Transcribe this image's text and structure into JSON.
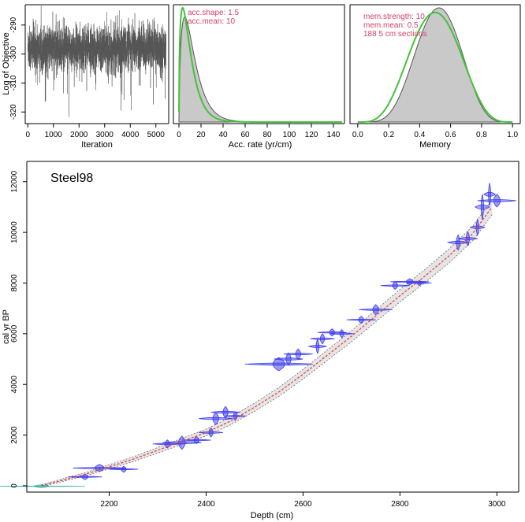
{
  "chart_data": [
    {
      "id": "iterations",
      "type": "line",
      "title": "",
      "xlabel": "Iteration",
      "ylabel": "Log of Objective",
      "xlim": [
        -100,
        5500
      ],
      "ylim": [
        -324,
        -283
      ],
      "xticks": [
        "0",
        "1000",
        "2000",
        "3000",
        "4000",
        "5000"
      ],
      "yticks": [
        "-290",
        "-300",
        "-310",
        "-320"
      ],
      "series": [
        {
          "color": "#555555",
          "n_iterations": 5400,
          "mean": -298,
          "spread": 7
        }
      ]
    },
    {
      "id": "acc-rate",
      "type": "area",
      "xlabel": "Acc. rate (yr/cm)",
      "xlim": [
        -5,
        150
      ],
      "xticks": [
        "0",
        "20",
        "40",
        "60",
        "80",
        "100",
        "120",
        "140"
      ],
      "legend": [
        "acc.shape:  1.5",
        "acc.mean:  10"
      ],
      "series": [
        {
          "role": "posterior",
          "fill": "#c9c9c9",
          "stroke": "#555555",
          "mode": 5,
          "scale": 10
        },
        {
          "role": "prior",
          "stroke": "#44c23a",
          "shape": 1.5,
          "mean": 10
        }
      ]
    },
    {
      "id": "memory",
      "type": "area",
      "xlabel": "Memory",
      "xlim": [
        -0.05,
        1.05
      ],
      "xticks": [
        "0.0",
        "0.2",
        "0.4",
        "0.6",
        "0.8",
        "1.0"
      ],
      "legend": [
        "mem.strength: 10",
        "mem.mean:  0.5",
        "188  5 cm sections"
      ],
      "series": [
        {
          "role": "posterior",
          "fill": "#c9c9c9",
          "stroke": "#555555",
          "mode": 0.52
        },
        {
          "role": "prior",
          "stroke": "#44c23a",
          "strength": 10,
          "mean": 0.5
        }
      ]
    },
    {
      "id": "age-depth",
      "type": "scatter",
      "title": "Steel98",
      "xlabel": "Depth (cm)",
      "ylabel": "cal yr BP",
      "xlim": [
        2030,
        3045
      ],
      "ylim": [
        -250,
        12800
      ],
      "xticks": [
        2200,
        2400,
        2600,
        2800,
        3000
      ],
      "yticks": [
        0,
        2000,
        4000,
        6000,
        8000,
        10000,
        12000
      ],
      "model": {
        "depth": [
          2060,
          2100,
          2150,
          2200,
          2250,
          2300,
          2350,
          2400,
          2450,
          2500,
          2550,
          2600,
          2650,
          2700,
          2750,
          2800,
          2850,
          2900,
          2950,
          2990
        ],
        "age": [
          0,
          200,
          450,
          750,
          1050,
          1400,
          1750,
          2100,
          2550,
          3100,
          3700,
          4400,
          5150,
          5900,
          6700,
          7500,
          8250,
          9050,
          9950,
          11000
        ],
        "line_color": "#e23b3b",
        "band_color": "#888888"
      },
      "dates": [
        {
          "depth": 2060,
          "age": -20,
          "wd": 90,
          "ha": 55,
          "color": "#3fb6a8"
        },
        {
          "depth": 2150,
          "age": 350,
          "wd": 35,
          "ha": 110
        },
        {
          "depth": 2180,
          "age": 700,
          "wd": 55,
          "ha": 140
        },
        {
          "depth": 2230,
          "age": 650,
          "wd": 30,
          "ha": 120
        },
        {
          "depth": 2320,
          "age": 1650,
          "wd": 30,
          "ha": 160
        },
        {
          "depth": 2350,
          "age": 1700,
          "wd": 40,
          "ha": 260
        },
        {
          "depth": 2380,
          "age": 1800,
          "wd": 30,
          "ha": 140
        },
        {
          "depth": 2410,
          "age": 2100,
          "wd": 25,
          "ha": 180
        },
        {
          "depth": 2420,
          "age": 2650,
          "wd": 35,
          "ha": 240
        },
        {
          "depth": 2440,
          "age": 2900,
          "wd": 30,
          "ha": 230
        },
        {
          "depth": 2460,
          "age": 2750,
          "wd": 22,
          "ha": 170
        },
        {
          "depth": 2550,
          "age": 4800,
          "wd": 70,
          "ha": 260
        },
        {
          "depth": 2570,
          "age": 5000,
          "wd": 30,
          "ha": 240
        },
        {
          "depth": 2590,
          "age": 5200,
          "wd": 30,
          "ha": 200
        },
        {
          "depth": 2630,
          "age": 5500,
          "wd": 18,
          "ha": 280
        },
        {
          "depth": 2640,
          "age": 5800,
          "wd": 25,
          "ha": 200
        },
        {
          "depth": 2660,
          "age": 6050,
          "wd": 30,
          "ha": 140
        },
        {
          "depth": 2680,
          "age": 6000,
          "wd": 25,
          "ha": 160
        },
        {
          "depth": 2720,
          "age": 6550,
          "wd": 30,
          "ha": 140
        },
        {
          "depth": 2750,
          "age": 6950,
          "wd": 35,
          "ha": 200
        },
        {
          "depth": 2790,
          "age": 7900,
          "wd": 30,
          "ha": 150
        },
        {
          "depth": 2820,
          "age": 8050,
          "wd": 40,
          "ha": 120
        },
        {
          "depth": 2840,
          "age": 8000,
          "wd": 25,
          "ha": 100
        },
        {
          "depth": 2920,
          "age": 9600,
          "wd": 22,
          "ha": 300
        },
        {
          "depth": 2940,
          "age": 9750,
          "wd": 20,
          "ha": 280
        },
        {
          "depth": 2960,
          "age": 10200,
          "wd": 15,
          "ha": 320
        },
        {
          "depth": 2970,
          "age": 11000,
          "wd": 15,
          "ha": 500
        },
        {
          "depth": 2985,
          "age": 11500,
          "wd": 12,
          "ha": 450
        },
        {
          "depth": 3000,
          "age": 11250,
          "wd": 40,
          "ha": 250
        }
      ]
    }
  ]
}
